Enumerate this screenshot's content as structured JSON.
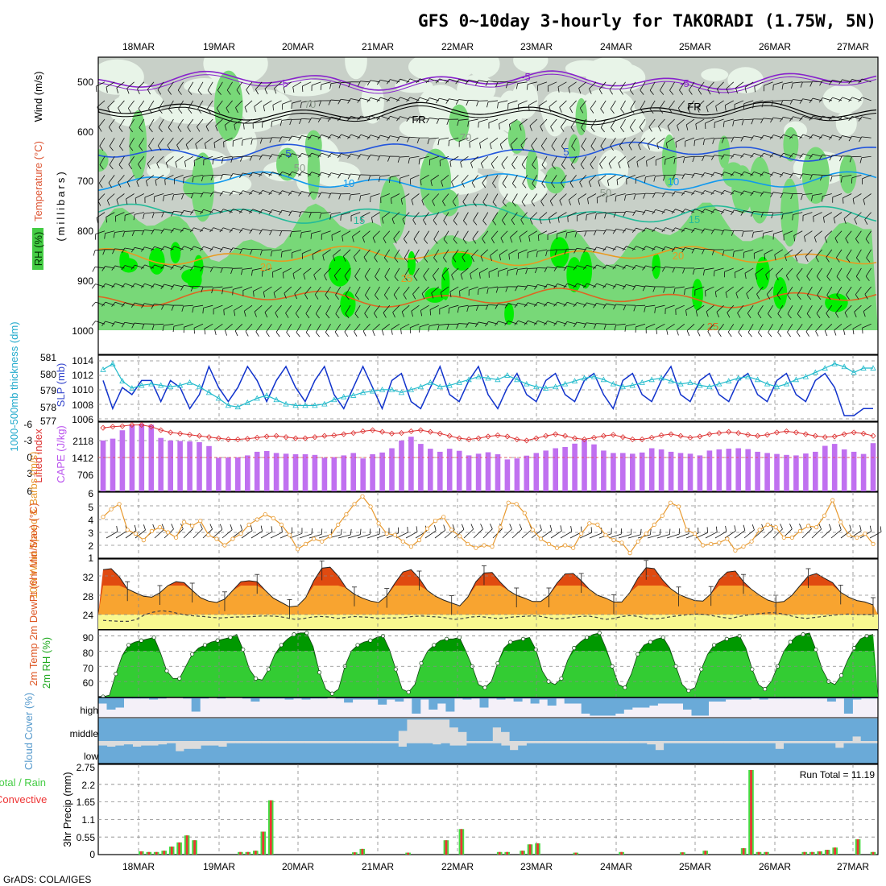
{
  "title": "GFS 0~10day 3-hourly for TAKORADI (1.75W, 5N)",
  "footer": "GrADS: COLA/IGES",
  "dates": [
    "18MAR",
    "19MAR",
    "20MAR",
    "21MAR",
    "22MAR",
    "23MAR",
    "24MAR",
    "25MAR",
    "26MAR",
    "27MAR"
  ],
  "colors": {
    "rh_light": "#e8f4e8",
    "rh_gray": "#c8d0c8",
    "rh_green": "#78d878",
    "rh_bright": "#00ee00",
    "temp_purple": "#8822cc",
    "temp_black": "#000000",
    "temp_blue": "#2255dd",
    "temp_sky": "#1199ee",
    "temp_teal": "#22bb99",
    "temp_orange": "#e89a20",
    "temp_dorange": "#dd6622",
    "temp_magenta": "#dd1177",
    "slp": "#1133cc",
    "thickness": "#22bbcc",
    "lifted": "#dd3333",
    "cape": "#c070f0",
    "wind10": "#e89a30",
    "temp_max": "#e04a10",
    "temp_band": "#f8a430",
    "dew": "#f8f890",
    "rh2m_dark": "#009900",
    "rh2m_light": "#33cc33",
    "cloud": "#6aaad8",
    "cloud_clear": "#dcdcdc",
    "cloud_high_bg": "#f4f0f8",
    "precip_total": "#44dd44",
    "precip_conv": "#ee3333"
  },
  "chart_data": [
    {
      "type": "heatmap",
      "name": "upper_air",
      "ylabel": "(millibars)",
      "side_labels": [
        "Wind (m/s)",
        "Temperature (°C)",
        "RH (%)"
      ],
      "y_ticks": [
        "500",
        "600",
        "700",
        "800",
        "900",
        "1000"
      ],
      "ylim": [
        450,
        1000
      ],
      "contour_labels": [
        "-5",
        "FR",
        "-5",
        "5",
        "10",
        "15",
        "20",
        "25",
        "50",
        "70",
        "5",
        "10",
        "15",
        "20",
        "25",
        "FR",
        "-5",
        "50",
        "70"
      ],
      "isotherms": [
        {
          "label": "-5",
          "p": 497,
          "color": "temp_purple"
        },
        {
          "label": "FR",
          "p": 560,
          "color": "temp_black"
        },
        {
          "label": "5",
          "p": 640,
          "color": "temp_blue"
        },
        {
          "label": "10",
          "p": 700,
          "color": "temp_sky"
        },
        {
          "label": "15",
          "p": 765,
          "color": "temp_teal"
        },
        {
          "label": "20",
          "p": 850,
          "color": "temp_orange"
        },
        {
          "label": "25",
          "p": 935,
          "color": "temp_dorange"
        }
      ]
    },
    {
      "type": "line",
      "name": "slp_thickness",
      "ylabel_left": "1000-500mb thickness (dm)",
      "ylabel_right": "SLP (mb)",
      "left_ticks": [
        "581",
        "580",
        "579",
        "578",
        "577"
      ],
      "right_ticks": [
        "1014",
        "1012",
        "1010",
        "1008",
        "1006"
      ],
      "ylim_slp": [
        1005.2,
        1014.6
      ],
      "ylim_thickness": [
        576.6,
        581.2
      ],
      "slp": [
        1011,
        1007,
        1010,
        1009,
        1011,
        1011,
        1008,
        1011,
        1010,
        1007,
        1009,
        1013,
        1010,
        1008,
        1010,
        1013,
        1011,
        1008,
        1011,
        1013,
        1010,
        1008,
        1011,
        1013,
        1009,
        1007,
        1010,
        1013,
        1010,
        1007,
        1011,
        1012,
        1008,
        1007,
        1010,
        1013,
        1009,
        1008,
        1011,
        1013,
        1009,
        1007,
        1010,
        1012,
        1009,
        1008,
        1011,
        1012,
        1009,
        1008,
        1011,
        1012,
        1009,
        1007,
        1011,
        1012,
        1009,
        1008,
        1011,
        1013,
        1009,
        1008,
        1011,
        1012,
        1009,
        1008,
        1011,
        1012,
        1009,
        1008,
        1011,
        1012,
        1009,
        1008,
        1011,
        1012,
        1010,
        1006,
        1006,
        1007,
        1007
      ],
      "thickness": [
        580.2,
        580.6,
        579.4,
        578.9,
        579.1,
        579.2,
        579.1,
        579.0,
        579.1,
        579.3,
        579.0,
        578.6,
        578.2,
        577.7,
        577.6,
        577.9,
        578.2,
        578.4,
        578.1,
        577.8,
        577.7,
        577.7,
        577.7,
        577.8,
        578.1,
        578.3,
        578.4,
        578.6,
        578.7,
        578.8,
        578.8,
        578.6,
        578.8,
        579.0,
        579.3,
        579.0,
        579.1,
        579.3,
        579.5,
        579.7,
        579.6,
        579.5,
        579.8,
        579.5,
        579.2,
        579.0,
        578.9,
        579.0,
        579.2,
        579.4,
        579.6,
        579.7,
        579.5,
        579.2,
        579.0,
        579.1,
        579.3,
        579.5,
        579.6,
        579.4,
        579.2,
        579.3,
        579.1,
        579.0,
        579.2,
        579.4,
        579.6,
        579.7,
        579.5,
        579.2,
        579.0,
        579.2,
        579.5,
        579.7,
        580.0,
        580.3,
        580.6,
        580.4,
        580.0,
        580.3,
        580.3
      ]
    },
    {
      "type": "bar",
      "name": "lifted_cape",
      "ylabel_left": "Lifted Index",
      "ylabel_right": "CAPE (J/kg)",
      "left_ticks": [
        "-6",
        "-3",
        "0",
        "3",
        "6"
      ],
      "right_ticks": [
        "2118",
        "1412",
        "706"
      ],
      "ylim_li": [
        -6,
        6
      ],
      "cape_max": 2824,
      "cape": [
        2120,
        2200,
        2550,
        2780,
        2824,
        2780,
        2230,
        2120,
        2100,
        2080,
        2050,
        1890,
        1400,
        1410,
        1420,
        1500,
        1650,
        1680,
        1600,
        1570,
        1550,
        1550,
        1520,
        1400,
        1430,
        1500,
        1600,
        1370,
        1550,
        1620,
        1800,
        2120,
        2280,
        1980,
        1780,
        1650,
        1780,
        1690,
        1500,
        1570,
        1630,
        1550,
        1330,
        1370,
        1490,
        1600,
        1700,
        1800,
        1850,
        1990,
        2150,
        1960,
        1700,
        1600,
        1600,
        1570,
        1620,
        1800,
        1750,
        1650,
        1600,
        1570,
        1500,
        1700,
        1750,
        1780,
        1800,
        1760,
        1650,
        1600,
        1560,
        1520,
        1500,
        1580,
        1650,
        1900,
        1980,
        1750,
        1650,
        1560,
        2010
      ],
      "lifted": [
        -5,
        -5.2,
        -5.3,
        -5.5,
        -5.5,
        -5.2,
        -4.6,
        -4.2,
        -4.0,
        -3.8,
        -3.6,
        -3.4,
        -3.2,
        -3.0,
        -3.0,
        -3.1,
        -3.3,
        -3.5,
        -3.6,
        -3.4,
        -3.2,
        -3.2,
        -3.4,
        -3.6,
        -3.7,
        -3.9,
        -4.1,
        -4.4,
        -4.6,
        -4.3,
        -4.0,
        -4.1,
        -4.4,
        -4.6,
        -4.3,
        -4.0,
        -3.6,
        -3.2,
        -3.0,
        -3.2,
        -3.5,
        -3.7,
        -3.5,
        -3.0,
        -2.8,
        -3.2,
        -3.6,
        -3.9,
        -3.6,
        -3.2,
        -3.0,
        -3.3,
        -3.6,
        -3.8,
        -3.4,
        -3.0,
        -3.0,
        -3.3,
        -3.7,
        -3.9,
        -3.6,
        -3.3,
        -3.5,
        -3.9,
        -4.1,
        -4.3,
        -4.1,
        -3.8,
        -3.6,
        -3.8,
        -4.2,
        -4.4,
        -4.2,
        -3.9,
        -3.6,
        -3.4,
        -3.5,
        -3.9,
        -4.2,
        -4.0,
        -3.6
      ]
    },
    {
      "type": "line",
      "name": "wind10m",
      "ylabel": "10m Wind Speed & Barbs (m/s)",
      "y_ticks": [
        "6",
        "5",
        "4",
        "3",
        "2",
        "1"
      ],
      "ylim": [
        1,
        6
      ],
      "speed": [
        4.2,
        4.8,
        5.2,
        3.2,
        2.9,
        2.4,
        3.1,
        3.4,
        3.0,
        2.6,
        3.8,
        3.5,
        3.9,
        2.8,
        2.5,
        2.0,
        2.5,
        2.9,
        3.6,
        4.0,
        4.4,
        4.1,
        3.6,
        2.8,
        1.7,
        2.1,
        2.5,
        2.3,
        2.7,
        3.6,
        4.4,
        5.2,
        5.8,
        5.0,
        3.7,
        2.9,
        2.8,
        2.3,
        1.9,
        2.4,
        3.3,
        3.9,
        4.2,
        3.2,
        2.7,
        2.1,
        1.8,
        2.0,
        1.9,
        3.4,
        5.3,
        5.2,
        4.5,
        3.2,
        2.5,
        2.1,
        1.8,
        2.0,
        1.8,
        2.9,
        3.7,
        3.6,
        2.8,
        2.4,
        2.2,
        1.4,
        2.3,
        2.9,
        3.6,
        4.3,
        5.3,
        5.0,
        3.2,
        2.9,
        2.0,
        2.1,
        2.2,
        2.5,
        1.6,
        1.9,
        2.3,
        3.2,
        3.6,
        3.4,
        2.6,
        2.6,
        3.1,
        3.5,
        3.4,
        4.3,
        5.5,
        3.8,
        2.8,
        2.6,
        2.9,
        2.1
      ]
    },
    {
      "type": "area",
      "name": "temp2m",
      "ylabel": "2m Temp 2m DewPt (6hr Min/Max) (°C)",
      "y_ticks": [
        "32",
        "28",
        "24"
      ],
      "ylim": [
        21,
        35.5
      ],
      "temp": [
        33.3,
        33.5,
        31.8,
        29.3,
        28.5,
        27.8,
        27.6,
        28.5,
        30.0,
        30.8,
        30.6,
        29.0,
        27.5,
        26.8,
        26.5,
        27.2,
        29.0,
        30.8,
        31.0,
        30.8,
        29.0,
        27.4,
        26.5,
        25.6,
        25.8,
        27.5,
        31.0,
        33.6,
        33.8,
        32.0,
        29.5,
        28.2,
        27.4,
        26.8,
        26.5,
        27.9,
        30.5,
        32.8,
        33.3,
        31.5,
        29.0,
        27.8,
        27.0,
        26.4,
        25.8,
        27.6,
        30.8,
        32.6,
        32.7,
        30.7,
        29.0,
        28.0,
        27.4,
        26.7,
        26.7,
        28.0,
        30.5,
        32.4,
        32.5,
        31.0,
        29.2,
        28.0,
        27.4,
        26.6,
        26.6,
        28.6,
        31.6,
        33.7,
        33.5,
        31.2,
        29.4,
        28.2,
        27.5,
        26.9,
        26.8,
        28.3,
        31.2,
        32.8,
        33.0,
        30.8,
        29.2,
        28.0,
        27.0,
        26.5,
        26.7,
        28.0,
        30.0,
        32.0,
        32.5,
        31.5,
        30.6,
        28.6,
        27.6,
        26.9,
        26.6,
        26.0
      ],
      "dew": [
        22.8,
        22.7,
        22.6,
        22.6,
        23.0,
        24.0,
        24.5,
        24.8,
        24.6,
        24.2,
        23.9,
        23.7,
        23.6,
        23.4,
        23.3,
        23.4,
        23.5,
        23.5,
        23.6,
        23.7,
        23.7,
        23.6,
        23.3,
        23.0,
        23.2,
        23.5,
        23.6,
        23.5,
        23.2,
        23.4,
        23.6,
        23.5,
        23.4,
        23.2,
        23.3,
        23.3,
        23.4,
        23.6,
        23.7,
        23.6,
        23.5,
        23.3,
        23.0,
        23.2,
        23.5,
        23.6,
        23.4,
        23.2,
        23.3,
        23.5,
        23.6,
        23.7,
        23.7,
        23.4,
        23.1,
        23.2,
        23.4,
        23.6,
        23.7,
        23.4,
        23.0,
        23.2,
        23.6,
        23.8,
        23.6,
        23.2,
        23.1,
        23.3,
        23.6,
        23.8,
        24.0,
        24.1,
        24.0,
        23.7,
        23.4,
        23.2,
        23.6,
        23.9,
        24.1,
        24.3,
        24.4,
        24.2,
        23.8,
        23.4,
        23.2,
        23.4,
        23.6,
        23.8,
        24.0,
        24.1,
        24.0,
        24.0,
        24.0
      ]
    },
    {
      "type": "area",
      "name": "rh2m",
      "ylabel": "2m RH (%)",
      "y_ticks": [
        "90",
        "80",
        "70",
        "60"
      ],
      "ylim": [
        50,
        94
      ],
      "rh": [
        50,
        51,
        65,
        77,
        84,
        86,
        87,
        88,
        89,
        79,
        67,
        62,
        62,
        70,
        78,
        82,
        84,
        86,
        87,
        88,
        89,
        91,
        81,
        68,
        62,
        61,
        68,
        78,
        84,
        88,
        91,
        92,
        92,
        83,
        66,
        55,
        52,
        55,
        70,
        80,
        84,
        86,
        87,
        89,
        90,
        81,
        68,
        55,
        53,
        58,
        72,
        80,
        84,
        87,
        88,
        88,
        89,
        80,
        70,
        58,
        56,
        60,
        72,
        82,
        86,
        87,
        88,
        89,
        81,
        67,
        60,
        58,
        62,
        74,
        82,
        86,
        89,
        91,
        92,
        82,
        70,
        58,
        56,
        65,
        78,
        84,
        86,
        88,
        89,
        82,
        70,
        58,
        54,
        56,
        68,
        78,
        84,
        86,
        88,
        89,
        90,
        82,
        68,
        58,
        55,
        60,
        70,
        80,
        86,
        90,
        91,
        92,
        81,
        68,
        60,
        58,
        64,
        74,
        82,
        88,
        90,
        91
      ],
      "rh_end": 91
    },
    {
      "type": "bar",
      "name": "cloud",
      "ylabel": "Cloud Cover (%)",
      "layers": [
        "high",
        "middle",
        "low"
      ],
      "high": [
        0.3,
        0.6,
        0.5,
        0.05,
        0.05,
        0.05,
        0.1,
        0.05,
        0,
        0,
        0.05,
        0.7,
        0.05,
        0,
        0.05,
        0,
        0,
        0.05,
        0.2,
        0.05,
        0.05,
        0.05,
        0.1,
        0.05,
        0.1,
        0.05,
        0.05,
        0,
        0.05,
        0.25,
        0.1,
        0.1,
        0.1,
        0.35,
        0.1,
        0.2,
        0.05,
        0.8,
        0.1,
        0.6,
        0.3,
        0.7,
        0.05,
        0.1,
        0.05,
        0.5,
        0.05,
        0.1,
        0.05,
        0.2,
        0.05,
        0.3,
        0.1,
        0.4,
        0.05,
        0.3,
        0.3,
        0.8,
        0.9,
        0.9,
        0.9,
        0.8,
        0.6,
        0.5,
        0.5,
        0.4,
        0.3,
        0.3,
        0.3,
        0.6,
        0.9,
        0.9,
        0.2,
        0.2,
        0.1,
        0.1,
        0.1,
        0.05,
        0.1,
        0.05,
        0.05,
        0.05,
        0.05,
        0.05,
        0.05,
        0.05,
        0.2,
        0.05,
        0.8,
        0.1,
        0.05,
        0.05
      ],
      "middle": [
        1,
        1,
        1,
        1,
        1,
        1,
        1,
        1,
        1,
        1,
        1,
        1,
        1,
        1,
        1,
        1,
        1,
        1,
        1,
        1,
        1,
        1,
        1,
        1,
        1,
        1,
        1,
        1,
        1,
        1,
        1,
        1,
        1,
        1,
        1,
        0.55,
        0.05,
        0.05,
        0.05,
        0.05,
        0.05,
        0.4,
        0.6,
        1,
        1,
        1,
        0.4,
        0.6,
        1,
        1,
        1,
        1,
        1,
        1,
        1,
        1,
        1,
        1,
        1,
        1,
        1,
        1,
        1,
        1,
        1,
        1,
        1,
        1,
        1,
        1,
        1,
        1,
        1,
        1,
        1,
        1,
        1,
        1,
        1,
        1,
        1,
        1,
        1,
        1,
        1,
        1,
        1,
        1,
        0.8,
        1,
        1
      ],
      "low": [
        0.8,
        0.75,
        0.8,
        0.85,
        0.75,
        0.8,
        0.8,
        0.85,
        0.9,
        0.55,
        0.65,
        0.65,
        0.8,
        0.8,
        0.75,
        0.9,
        0.9,
        0.9,
        0.9,
        0.9,
        0.9,
        0.9,
        0.9,
        0.9,
        0.9,
        0.9,
        0.9,
        0.9,
        0.9,
        0.9,
        0.9,
        0.9,
        0.9,
        0.9,
        0.9,
        0.75,
        0.9,
        0.9,
        0.9,
        0.85,
        0.9,
        0.8,
        0.8,
        0.9,
        0.9,
        0.9,
        0.9,
        0.8,
        0.6,
        0.8,
        0.9,
        0.9,
        0.9,
        0.9,
        0.9,
        0.9,
        0.9,
        0.9,
        0.9,
        0.9,
        0.9,
        0.9,
        0.9,
        0.9,
        0.85,
        0.6,
        0.9,
        0.9,
        0.9,
        0.9,
        0.9,
        0.9,
        0.9,
        0.9,
        0.9,
        0.9,
        0.9,
        0.9,
        0.9,
        0.65,
        0.9,
        0.9,
        0.9,
        0.9,
        0.9,
        0.9,
        0.7,
        0.9,
        0.9,
        0.9,
        0.9
      ]
    },
    {
      "type": "bar",
      "name": "precip",
      "ylabel": "3hr Precip (mm)",
      "side_labels": [
        "Total / Rain",
        "Convective"
      ],
      "y_ticks": [
        "2.75",
        "2.2",
        "1.65",
        "1.1",
        "0.55",
        "0"
      ],
      "ylim": [
        0,
        2.75
      ],
      "annotation": "Run Total = 11.19",
      "values": [
        0,
        0,
        0,
        0,
        0,
        0.1,
        0.08,
        0.08,
        0.12,
        0.25,
        0.38,
        0.6,
        0.45,
        0,
        0,
        0,
        0,
        0,
        0.08,
        0.08,
        0.12,
        0.72,
        1.7,
        0,
        0,
        0,
        0,
        0,
        0,
        0,
        0,
        0,
        0,
        0.07,
        0.18,
        0,
        0,
        0,
        0,
        0,
        0.06,
        0,
        0,
        0,
        0,
        0.45,
        0,
        0.8,
        0,
        0,
        0,
        0,
        0.08,
        0.08,
        0,
        0.12,
        0.32,
        0.35,
        0,
        0,
        0,
        0,
        0.06,
        0,
        0,
        0,
        0,
        0,
        0.08,
        0,
        0,
        0,
        0,
        0,
        0,
        0,
        0.07,
        0,
        0,
        0.12,
        0,
        0,
        0,
        0,
        0.2,
        2.65,
        0.08,
        0.08,
        0,
        0,
        0,
        0,
        0.08,
        0.08,
        0.1,
        0.15,
        0.22,
        0,
        0,
        0.48,
        0,
        0.08
      ],
      "conv_fraction": 0.55
    }
  ]
}
